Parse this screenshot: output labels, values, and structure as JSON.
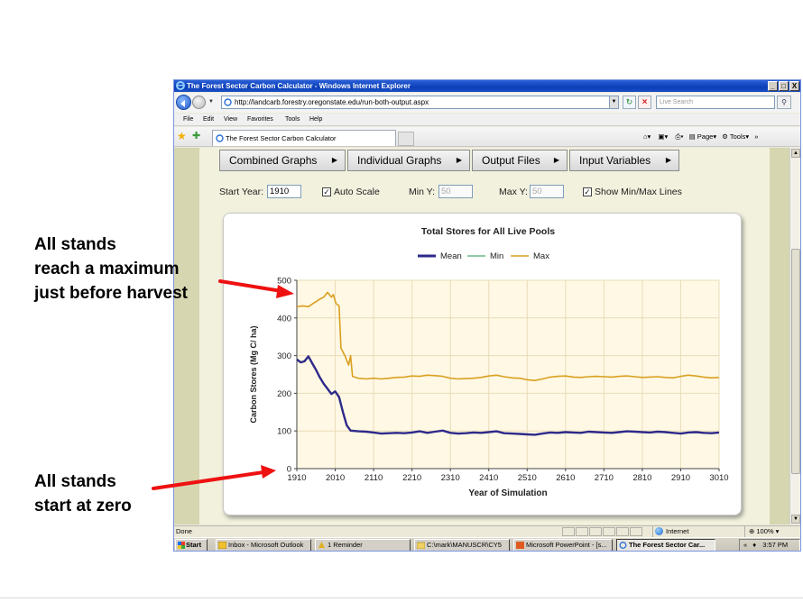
{
  "browser": {
    "window_title": "The Forest Sector Carbon Calculator - Windows Internet Explorer",
    "window_buttons": [
      "_",
      "□",
      "X"
    ],
    "url": "http://landcarb.forestry.oregonstate.edu/run-both-output.aspx",
    "search_placeholder": "Live Search",
    "menu": [
      "File",
      "Edit",
      "View",
      "Favorites",
      "Tools",
      "Help"
    ],
    "tab_title": "The Forest Sector Carbon Calculator",
    "command_bar": {
      "page": "Page",
      "tools": "Tools"
    },
    "status": {
      "text": "Done",
      "zone": "Internet",
      "zoom": "100%"
    }
  },
  "app": {
    "menu_buttons": [
      "Combined Graphs",
      "Individual Graphs",
      "Output Files",
      "Input Variables"
    ],
    "controls": {
      "start_year_label": "Start Year:",
      "start_year_value": "1910",
      "auto_scale_label": "Auto Scale",
      "auto_scale_checked": true,
      "min_y_label": "Min Y:",
      "min_y_value": "50",
      "max_y_label": "Max Y:",
      "max_y_value": "50",
      "show_minmax_label": "Show Min/Max Lines",
      "show_minmax_checked": true
    }
  },
  "chart_data": {
    "type": "line",
    "title": "Total Stores for All Live Pools",
    "xlabel": "Year of Simulation",
    "ylabel": "Carbon Stores (Mg C/ ha)",
    "xlim": [
      1910,
      3010
    ],
    "ylim": [
      0,
      500
    ],
    "x_ticks": [
      1910,
      2010,
      2110,
      2210,
      2310,
      2410,
      2510,
      2610,
      2710,
      2810,
      2910,
      3010
    ],
    "y_ticks": [
      0,
      100,
      200,
      300,
      400,
      500
    ],
    "grid": true,
    "legend_position": "top-center",
    "series": [
      {
        "name": "Mean",
        "color": "#2e2a8a",
        "points": [
          [
            1910,
            290
          ],
          [
            1920,
            282
          ],
          [
            1930,
            285
          ],
          [
            1940,
            298
          ],
          [
            1950,
            280
          ],
          [
            1960,
            262
          ],
          [
            1970,
            242
          ],
          [
            1980,
            225
          ],
          [
            1990,
            212
          ],
          [
            2000,
            198
          ],
          [
            2010,
            205
          ],
          [
            2020,
            190
          ],
          [
            2030,
            150
          ],
          [
            2040,
            115
          ],
          [
            2050,
            101
          ],
          [
            2060,
            100
          ],
          [
            2070,
            99
          ],
          [
            2090,
            98
          ],
          [
            2110,
            96
          ],
          [
            2130,
            93
          ],
          [
            2150,
            94
          ],
          [
            2170,
            95
          ],
          [
            2190,
            94
          ],
          [
            2210,
            96
          ],
          [
            2230,
            99
          ],
          [
            2250,
            95
          ],
          [
            2270,
            98
          ],
          [
            2290,
            101
          ],
          [
            2310,
            95
          ],
          [
            2330,
            93
          ],
          [
            2350,
            94
          ],
          [
            2370,
            96
          ],
          [
            2390,
            95
          ],
          [
            2410,
            97
          ],
          [
            2430,
            99
          ],
          [
            2450,
            94
          ],
          [
            2470,
            93
          ],
          [
            2490,
            92
          ],
          [
            2510,
            91
          ],
          [
            2530,
            90
          ],
          [
            2550,
            93
          ],
          [
            2570,
            96
          ],
          [
            2590,
            95
          ],
          [
            2610,
            97
          ],
          [
            2630,
            96
          ],
          [
            2650,
            95
          ],
          [
            2670,
            98
          ],
          [
            2690,
            97
          ],
          [
            2710,
            96
          ],
          [
            2730,
            95
          ],
          [
            2750,
            97
          ],
          [
            2770,
            99
          ],
          [
            2790,
            98
          ],
          [
            2810,
            97
          ],
          [
            2830,
            96
          ],
          [
            2850,
            98
          ],
          [
            2870,
            97
          ],
          [
            2890,
            95
          ],
          [
            2910,
            93
          ],
          [
            2930,
            96
          ],
          [
            2950,
            97
          ],
          [
            2970,
            95
          ],
          [
            2990,
            94
          ],
          [
            3010,
            96
          ]
        ]
      },
      {
        "name": "Min",
        "color": "#6ab88a",
        "points": [
          [
            1910,
            290
          ],
          [
            1920,
            282
          ],
          [
            1930,
            285
          ],
          [
            1940,
            298
          ],
          [
            1950,
            280
          ],
          [
            1960,
            262
          ],
          [
            1970,
            242
          ],
          [
            1980,
            225
          ],
          [
            1990,
            212
          ],
          [
            2000,
            198
          ],
          [
            2010,
            205
          ],
          [
            2020,
            190
          ],
          [
            2030,
            150
          ],
          [
            2040,
            115
          ],
          [
            2050,
            101
          ],
          [
            2060,
            100
          ],
          [
            2070,
            99
          ],
          [
            2090,
            98
          ],
          [
            2110,
            96
          ],
          [
            2130,
            93
          ],
          [
            2150,
            94
          ],
          [
            2170,
            95
          ],
          [
            2190,
            94
          ],
          [
            2210,
            96
          ],
          [
            2230,
            99
          ],
          [
            2250,
            95
          ],
          [
            2270,
            98
          ],
          [
            2290,
            101
          ],
          [
            2310,
            95
          ],
          [
            2330,
            93
          ],
          [
            2350,
            94
          ],
          [
            2370,
            96
          ],
          [
            2390,
            95
          ],
          [
            2410,
            97
          ],
          [
            2430,
            99
          ],
          [
            2450,
            94
          ],
          [
            2470,
            93
          ],
          [
            2490,
            92
          ],
          [
            2510,
            91
          ],
          [
            2530,
            90
          ],
          [
            2550,
            93
          ],
          [
            2570,
            96
          ],
          [
            2590,
            95
          ],
          [
            2610,
            97
          ],
          [
            2630,
            96
          ],
          [
            2650,
            95
          ],
          [
            2670,
            98
          ],
          [
            2690,
            97
          ],
          [
            2710,
            96
          ],
          [
            2730,
            95
          ],
          [
            2750,
            97
          ],
          [
            2770,
            99
          ],
          [
            2790,
            98
          ],
          [
            2810,
            97
          ],
          [
            2830,
            96
          ],
          [
            2850,
            98
          ],
          [
            2870,
            97
          ],
          [
            2890,
            95
          ],
          [
            2910,
            93
          ],
          [
            2930,
            96
          ],
          [
            2950,
            97
          ],
          [
            2970,
            95
          ],
          [
            2990,
            94
          ],
          [
            3010,
            96
          ]
        ]
      },
      {
        "name": "Max",
        "color": "#d9a020",
        "points": [
          [
            1910,
            430
          ],
          [
            1925,
            432
          ],
          [
            1940,
            430
          ],
          [
            1955,
            440
          ],
          [
            1970,
            450
          ],
          [
            1980,
            455
          ],
          [
            1990,
            468
          ],
          [
            2000,
            455
          ],
          [
            2005,
            462
          ],
          [
            2012,
            438
          ],
          [
            2020,
            432
          ],
          [
            2025,
            320
          ],
          [
            2035,
            300
          ],
          [
            2045,
            275
          ],
          [
            2050,
            300
          ],
          [
            2055,
            245
          ],
          [
            2070,
            240
          ],
          [
            2090,
            238
          ],
          [
            2110,
            240
          ],
          [
            2130,
            238
          ],
          [
            2150,
            240
          ],
          [
            2170,
            242
          ],
          [
            2190,
            243
          ],
          [
            2210,
            246
          ],
          [
            2230,
            245
          ],
          [
            2250,
            248
          ],
          [
            2270,
            247
          ],
          [
            2290,
            245
          ],
          [
            2310,
            240
          ],
          [
            2330,
            238
          ],
          [
            2350,
            239
          ],
          [
            2370,
            240
          ],
          [
            2390,
            242
          ],
          [
            2410,
            246
          ],
          [
            2430,
            248
          ],
          [
            2450,
            244
          ],
          [
            2470,
            241
          ],
          [
            2490,
            240
          ],
          [
            2510,
            236
          ],
          [
            2530,
            234
          ],
          [
            2550,
            238
          ],
          [
            2570,
            243
          ],
          [
            2590,
            245
          ],
          [
            2610,
            246
          ],
          [
            2630,
            243
          ],
          [
            2650,
            242
          ],
          [
            2670,
            244
          ],
          [
            2690,
            245
          ],
          [
            2710,
            244
          ],
          [
            2730,
            243
          ],
          [
            2750,
            245
          ],
          [
            2770,
            246
          ],
          [
            2790,
            244
          ],
          [
            2810,
            242
          ],
          [
            2830,
            243
          ],
          [
            2850,
            244
          ],
          [
            2870,
            242
          ],
          [
            2890,
            241
          ],
          [
            2910,
            245
          ],
          [
            2930,
            248
          ],
          [
            2950,
            246
          ],
          [
            2970,
            243
          ],
          [
            2990,
            241
          ],
          [
            3010,
            242
          ]
        ]
      }
    ]
  },
  "taskbar": {
    "start": "Start",
    "items": [
      {
        "label": "Inbox - Microsoft Outlook",
        "active": false
      },
      {
        "label": "1 Reminder",
        "active": false
      },
      {
        "label": "C:\\mark\\MANUSCR\\CY5",
        "active": false
      },
      {
        "label": "Microsoft PowerPoint - [s...",
        "active": false
      },
      {
        "label": "The Forest Sector Car...",
        "active": true
      }
    ],
    "tray_chevron": "«",
    "clock": "3:57 PM"
  },
  "annotations": {
    "top": "All stands\nreach a maximum\njust before harvest",
    "bottom": "All stands\nstart at zero"
  },
  "colors": {
    "arrow": "#ee1111",
    "page_bg": "#d6d6b0",
    "plot_bg": "#fff8e4"
  }
}
